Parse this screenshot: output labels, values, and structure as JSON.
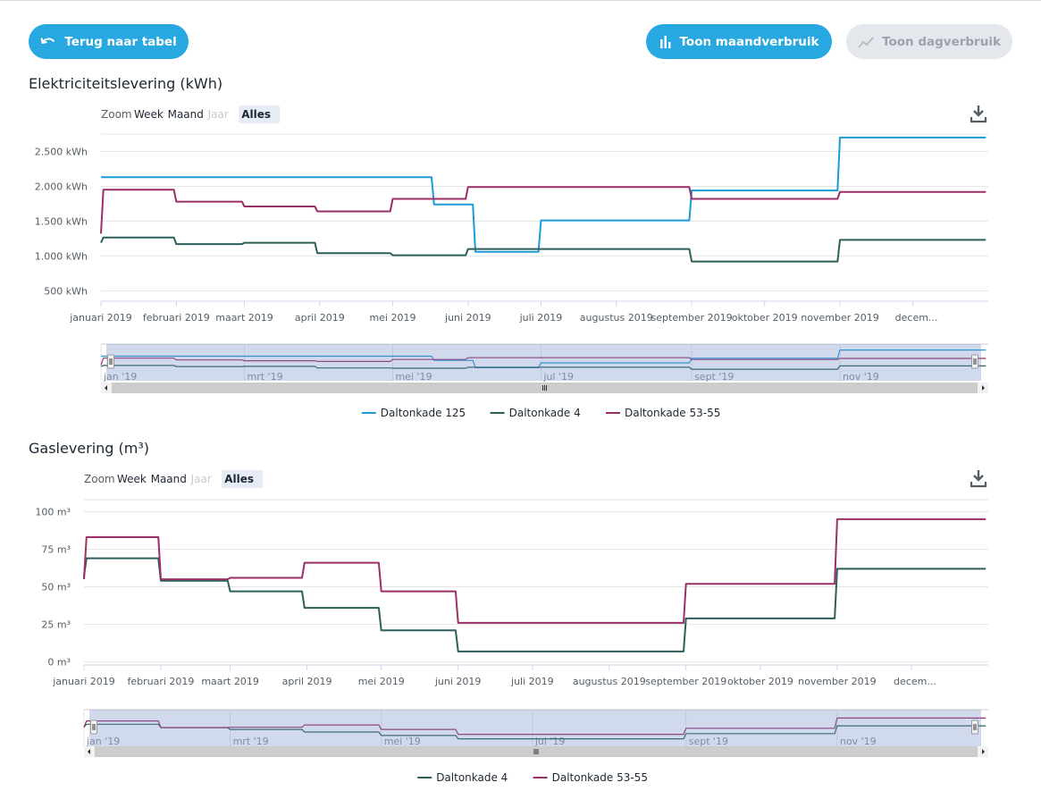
{
  "buttons": {
    "back": "Terug naar tabel",
    "month": "Toon maandverbruik",
    "day": "Toon dagverbruik"
  },
  "icons": {
    "back": "undo-arrow-icon",
    "month": "bar-chart-icon",
    "day": "line-chart-icon",
    "download": "download-icon"
  },
  "colors": {
    "accent": "#27a8e0",
    "disabled": "#e4e7eb",
    "series_blue": "#1d9ad6",
    "series_green": "#2b5f58",
    "series_purple": "#9b2e66",
    "navigator_mask": "rgba(102,133,194,0.3)"
  },
  "zoom": {
    "label": "Zoom",
    "buttons": [
      "Week",
      "Maand",
      "Jaar",
      "Alles"
    ],
    "active": "Alles",
    "disabled": "Jaar"
  },
  "months": [
    "januari 2019",
    "februari 2019",
    "maart 2019",
    "april 2019",
    "mei 2019",
    "juni 2019",
    "juli 2019",
    "augustus 2019",
    "september 2019",
    "oktober 2019",
    "november 2019",
    "decem..."
  ],
  "chart_data": [
    {
      "type": "line",
      "title": "Elektriciteitslevering (kWh)",
      "x_range": [
        "2019-01-01",
        "2019-12-31"
      ],
      "ylim": [
        350,
        2750
      ],
      "y_ticks": [
        "500 kWh",
        "1.000 kWh",
        "1.500 kWh",
        "2.000 kWh",
        "2.500 kWh"
      ],
      "y_tick_values": [
        500,
        1000,
        1500,
        2000,
        2500
      ],
      "grid": true,
      "legend_position": "bottom",
      "navigator_labels": [
        "jan '19",
        "mrt '19",
        "mei '19",
        "jul '19",
        "sept '19",
        "nov '19"
      ],
      "series": [
        {
          "name": "Daltonkade 125",
          "color": "#1d9ad6",
          "points": [
            [
              "2019-01-01",
              2130
            ],
            [
              "2019-05-17",
              2130
            ],
            [
              "2019-05-18",
              1740
            ],
            [
              "2019-06-03",
              1740
            ],
            [
              "2019-06-04",
              1060
            ],
            [
              "2019-06-30",
              1060
            ],
            [
              "2019-07-01",
              1510
            ],
            [
              "2019-08-31",
              1510
            ],
            [
              "2019-09-01",
              1940
            ],
            [
              "2019-10-31",
              1940
            ],
            [
              "2019-11-01",
              2700
            ],
            [
              "2019-12-31",
              2700
            ]
          ]
        },
        {
          "name": "Daltonkade 4",
          "color": "#2b5f58",
          "points": [
            [
              "2019-01-01",
              1190
            ],
            [
              "2019-01-02",
              1265
            ],
            [
              "2019-01-31",
              1265
            ],
            [
              "2019-02-01",
              1170
            ],
            [
              "2019-02-28",
              1170
            ],
            [
              "2019-03-01",
              1190
            ],
            [
              "2019-03-30",
              1190
            ],
            [
              "2019-03-31",
              1040
            ],
            [
              "2019-04-30",
              1040
            ],
            [
              "2019-05-01",
              1010
            ],
            [
              "2019-05-31",
              1010
            ],
            [
              "2019-06-01",
              1100
            ],
            [
              "2019-08-31",
              1100
            ],
            [
              "2019-09-01",
              920
            ],
            [
              "2019-10-31",
              920
            ],
            [
              "2019-11-01",
              1230
            ],
            [
              "2019-12-31",
              1230
            ]
          ]
        },
        {
          "name": "Daltonkade 53-55",
          "color": "#9b2e66",
          "points": [
            [
              "2019-01-01",
              1320
            ],
            [
              "2019-01-02",
              1950
            ],
            [
              "2019-01-31",
              1950
            ],
            [
              "2019-02-01",
              1780
            ],
            [
              "2019-02-28",
              1780
            ],
            [
              "2019-03-01",
              1710
            ],
            [
              "2019-03-30",
              1710
            ],
            [
              "2019-03-31",
              1640
            ],
            [
              "2019-04-30",
              1640
            ],
            [
              "2019-05-01",
              1820
            ],
            [
              "2019-05-31",
              1820
            ],
            [
              "2019-06-01",
              1990
            ],
            [
              "2019-08-31",
              1990
            ],
            [
              "2019-09-01",
              1820
            ],
            [
              "2019-10-31",
              1820
            ],
            [
              "2019-11-01",
              1920
            ],
            [
              "2019-12-31",
              1920
            ]
          ]
        }
      ]
    },
    {
      "type": "line",
      "title": "Gaslevering (m³)",
      "x_range": [
        "2019-01-01",
        "2019-12-31"
      ],
      "ylim": [
        -2,
        108
      ],
      "y_ticks": [
        "0 m³",
        "25 m³",
        "50 m³",
        "75 m³",
        "100 m³"
      ],
      "y_tick_values": [
        0,
        25,
        50,
        75,
        100
      ],
      "grid": true,
      "legend_position": "bottom",
      "navigator_labels": [
        "jan '19",
        "mrt '19",
        "mei '19",
        "jul '19",
        "sept '19",
        "nov '19"
      ],
      "series": [
        {
          "name": "Daltonkade 4",
          "color": "#2b5f58",
          "points": [
            [
              "2019-01-01",
              57
            ],
            [
              "2019-01-02",
              69
            ],
            [
              "2019-01-31",
              69
            ],
            [
              "2019-02-01",
              54
            ],
            [
              "2019-02-28",
              54
            ],
            [
              "2019-03-01",
              47
            ],
            [
              "2019-03-30",
              47
            ],
            [
              "2019-03-31",
              36
            ],
            [
              "2019-04-30",
              36
            ],
            [
              "2019-05-01",
              21
            ],
            [
              "2019-05-31",
              21
            ],
            [
              "2019-06-01",
              7
            ],
            [
              "2019-08-31",
              7
            ],
            [
              "2019-09-01",
              29
            ],
            [
              "2019-10-31",
              29
            ],
            [
              "2019-11-01",
              62
            ],
            [
              "2019-12-31",
              62
            ]
          ]
        },
        {
          "name": "Daltonkade 53-55",
          "color": "#9b2e66",
          "points": [
            [
              "2019-01-01",
              55
            ],
            [
              "2019-01-02",
              83
            ],
            [
              "2019-01-31",
              83
            ],
            [
              "2019-02-01",
              55
            ],
            [
              "2019-02-28",
              55
            ],
            [
              "2019-03-01",
              56
            ],
            [
              "2019-03-30",
              56
            ],
            [
              "2019-03-31",
              66
            ],
            [
              "2019-04-30",
              66
            ],
            [
              "2019-05-01",
              47
            ],
            [
              "2019-05-31",
              47
            ],
            [
              "2019-06-01",
              26
            ],
            [
              "2019-08-31",
              26
            ],
            [
              "2019-09-01",
              52
            ],
            [
              "2019-10-31",
              52
            ],
            [
              "2019-11-01",
              95
            ],
            [
              "2019-12-31",
              95
            ]
          ]
        }
      ]
    }
  ]
}
